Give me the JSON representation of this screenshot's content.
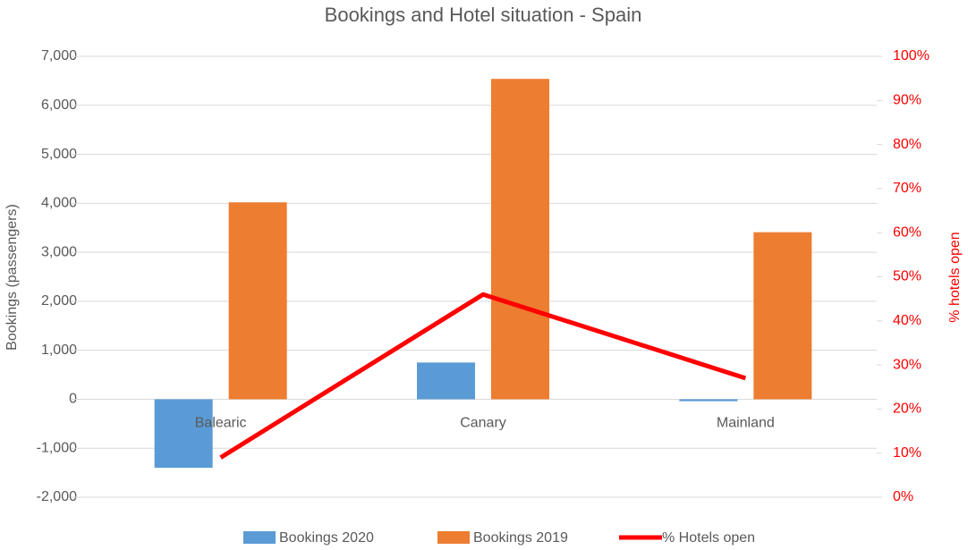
{
  "chart_data": {
    "type": "bar",
    "title": "Bookings and Hotel situation - Spain",
    "ylabel": "Bookings (passengers)",
    "y2label": "% hotels open",
    "categories": [
      "Balearic",
      "Canary",
      "Mainland"
    ],
    "series": [
      {
        "name": "Bookings 2020",
        "color": "#5b9bd5",
        "type": "bar",
        "values": [
          -1400,
          750,
          -40
        ]
      },
      {
        "name": "Bookings 2019",
        "color": "#ed7d31",
        "type": "bar",
        "values": [
          4020,
          6540,
          3410
        ]
      },
      {
        "name": "% Hotels open",
        "color": "#ff0000",
        "type": "line",
        "axis": "y2",
        "values": [
          9,
          46,
          27
        ]
      }
    ],
    "ylim": [
      -2000,
      7000
    ],
    "yticks": [
      {
        "value": -2000,
        "label": "-2,000"
      },
      {
        "value": -1000,
        "label": "-1,000"
      },
      0,
      {
        "value": 1000,
        "label": "1,000"
      },
      {
        "value": 2000,
        "label": "2,000"
      },
      {
        "value": 3000,
        "label": "3,000"
      },
      {
        "value": 4000,
        "label": "4,000"
      },
      {
        "value": 5000,
        "label": "5,000"
      },
      {
        "value": 6000,
        "label": "6,000"
      },
      {
        "value": 7000,
        "label": "7,000"
      }
    ],
    "y2lim": [
      0,
      100
    ],
    "y2ticks": [
      {
        "value": 0,
        "label": "0%"
      },
      {
        "value": 10,
        "label": "10%"
      },
      {
        "value": 20,
        "label": "20%"
      },
      {
        "value": 30,
        "label": "30%"
      },
      {
        "value": 40,
        "label": "40%"
      },
      {
        "value": 50,
        "label": "50%"
      },
      {
        "value": 60,
        "label": "60%"
      },
      {
        "value": 70,
        "label": "70%"
      },
      {
        "value": 80,
        "label": "80%"
      },
      {
        "value": 90,
        "label": "90%"
      },
      {
        "value": 100,
        "label": "100%"
      }
    ],
    "y2color": "#ff0000",
    "grid": true,
    "legend": "bottom"
  }
}
